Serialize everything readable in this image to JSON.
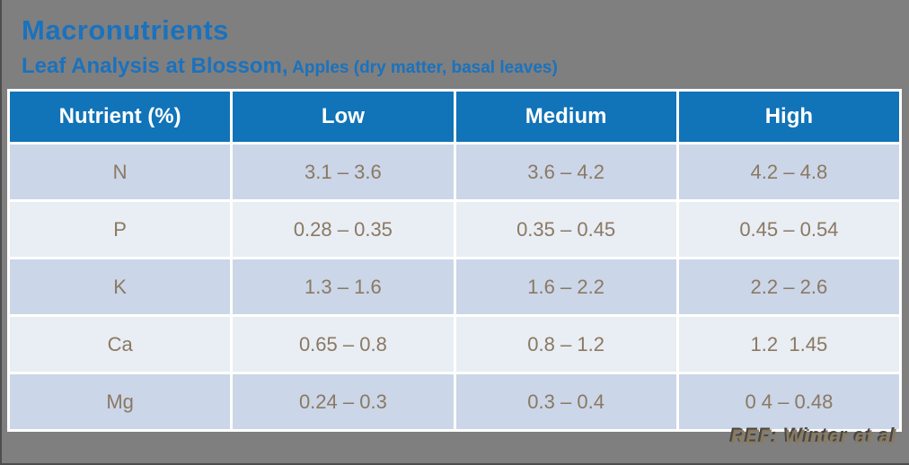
{
  "slide": {
    "title": "Macronutrients",
    "subtitle_main": "Leaf Analysis at Blossom,",
    "subtitle_detail": " Apples (dry matter, basal leaves)",
    "footer_ref": "REF: Winter et al"
  },
  "table": {
    "columns": [
      "Nutrient (%)",
      "Low",
      "Medium",
      "High"
    ],
    "rows": [
      {
        "nutrient": "N",
        "low": "3.1 – 3.6",
        "medium": "3.6 – 4.2",
        "high": "4.2 – 4.8"
      },
      {
        "nutrient": "P",
        "low": "0.28 – 0.35",
        "medium": "0.35 – 0.45",
        "high": "0.45 – 0.54"
      },
      {
        "nutrient": "K",
        "low": "1.3 – 1.6",
        "medium": "1.6 – 2.2",
        "high": "2.2 – 2.6"
      },
      {
        "nutrient": "Ca",
        "low": "0.65 – 0.8",
        "medium": "0.8 – 1.2",
        "high": "1.2  1.45"
      },
      {
        "nutrient": "Mg",
        "low": "0.24 – 0.3",
        "medium": "0.3 – 0.4",
        "high": "0 4 – 0.48"
      }
    ]
  },
  "colors": {
    "background": "#7F7F7F",
    "title_blue": "#1A72BE",
    "header_bg": "#1173B8",
    "row_odd_bg": "#CBD6E8",
    "row_even_bg": "#E9EDF4",
    "cell_text": "#8A7962",
    "footer_text": "#8A7A5E"
  }
}
